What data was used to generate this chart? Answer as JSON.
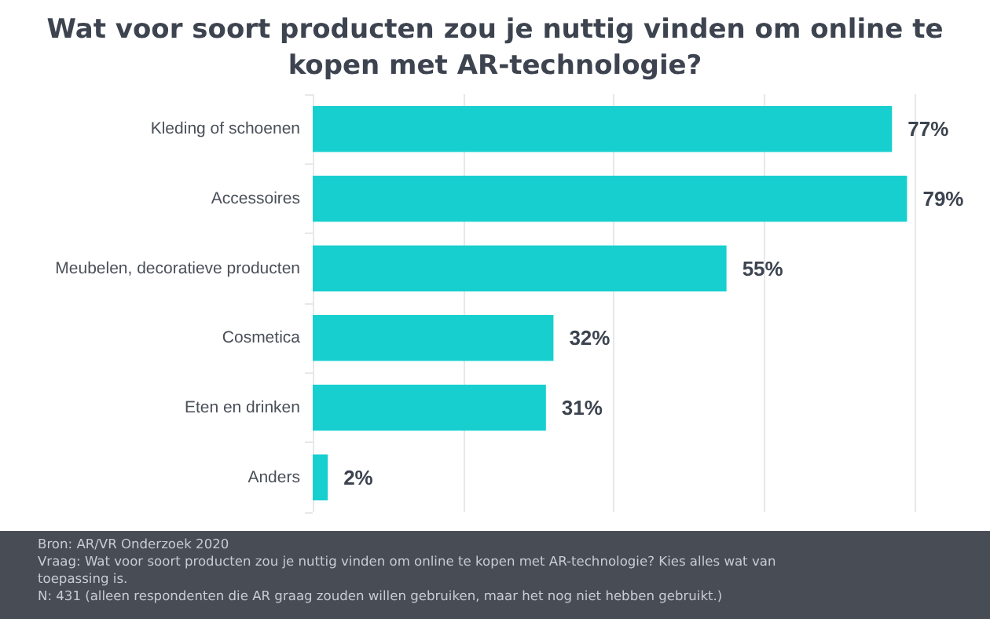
{
  "chart_data": {
    "type": "bar",
    "orientation": "horizontal",
    "title": "Wat voor soort producten zou je nuttig vinden om online te kopen met AR-technologie?",
    "categories": [
      "Kleding of schoenen",
      "Accessoires",
      "Meubelen, decoratieve producten",
      "Cosmetica",
      "Eten en drinken",
      "Anders"
    ],
    "values": [
      77,
      79,
      55,
      32,
      31,
      2
    ],
    "value_labels": [
      "77%",
      "79%",
      "55%",
      "32%",
      "31%",
      "2%"
    ],
    "color": "#17cfcf",
    "xlim": [
      0,
      80
    ],
    "xticks": [
      {
        "value": 0,
        "label": null
      },
      {
        "value": 20,
        "label": null
      },
      {
        "value": 40,
        "label": null
      },
      {
        "value": 60,
        "label": null
      },
      {
        "value": 80,
        "label": null
      }
    ],
    "tick_labels": "y",
    "grid": "x",
    "annotations": [
      "Bron: AR/VR Onderzoek 2020",
      "Vraag: Wat voor soort producten zou je nuttig vinden om online te kopen met AR-technologie? Kies alles wat van toepassing is.",
      "N: 431 (alleen respondenten die AR graag zouden willen gebruiken, maar het nog niet hebben gebruikt.)"
    ]
  }
}
